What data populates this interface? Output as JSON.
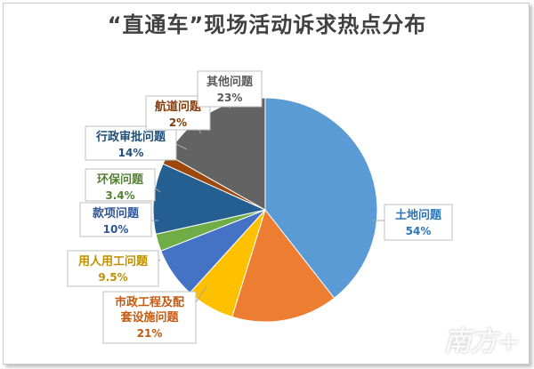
{
  "chart_data": {
    "type": "pie",
    "title": "“直通车”现场活动诉求热点分布",
    "legend": "none",
    "slices": [
      {
        "label": "土地问题",
        "value": 54,
        "value_label": "54%",
        "color": "#5B9BD5"
      },
      {
        "label": "市政工程及配套设施问题",
        "value": 21,
        "value_label": "21%",
        "color": "#ED7D31"
      },
      {
        "label": "用人用工问题",
        "value": 9.5,
        "value_label": "9.5%",
        "color": "#FFC000"
      },
      {
        "label": "款项问题",
        "value": 10,
        "value_label": "10%",
        "color": "#4472C4"
      },
      {
        "label": "环保问题",
        "value": 3.4,
        "value_label": "3.4%",
        "color": "#70AD47"
      },
      {
        "label": "行政审批问题",
        "value": 14,
        "value_label": "14%",
        "color": "#255E91"
      },
      {
        "label": "航道问题",
        "value": 2,
        "value_label": "2%",
        "color": "#9E480E"
      },
      {
        "label": "其他问题",
        "value": 23,
        "value_label": "23%",
        "color": "#636363"
      }
    ]
  },
  "watermark": "南方+"
}
